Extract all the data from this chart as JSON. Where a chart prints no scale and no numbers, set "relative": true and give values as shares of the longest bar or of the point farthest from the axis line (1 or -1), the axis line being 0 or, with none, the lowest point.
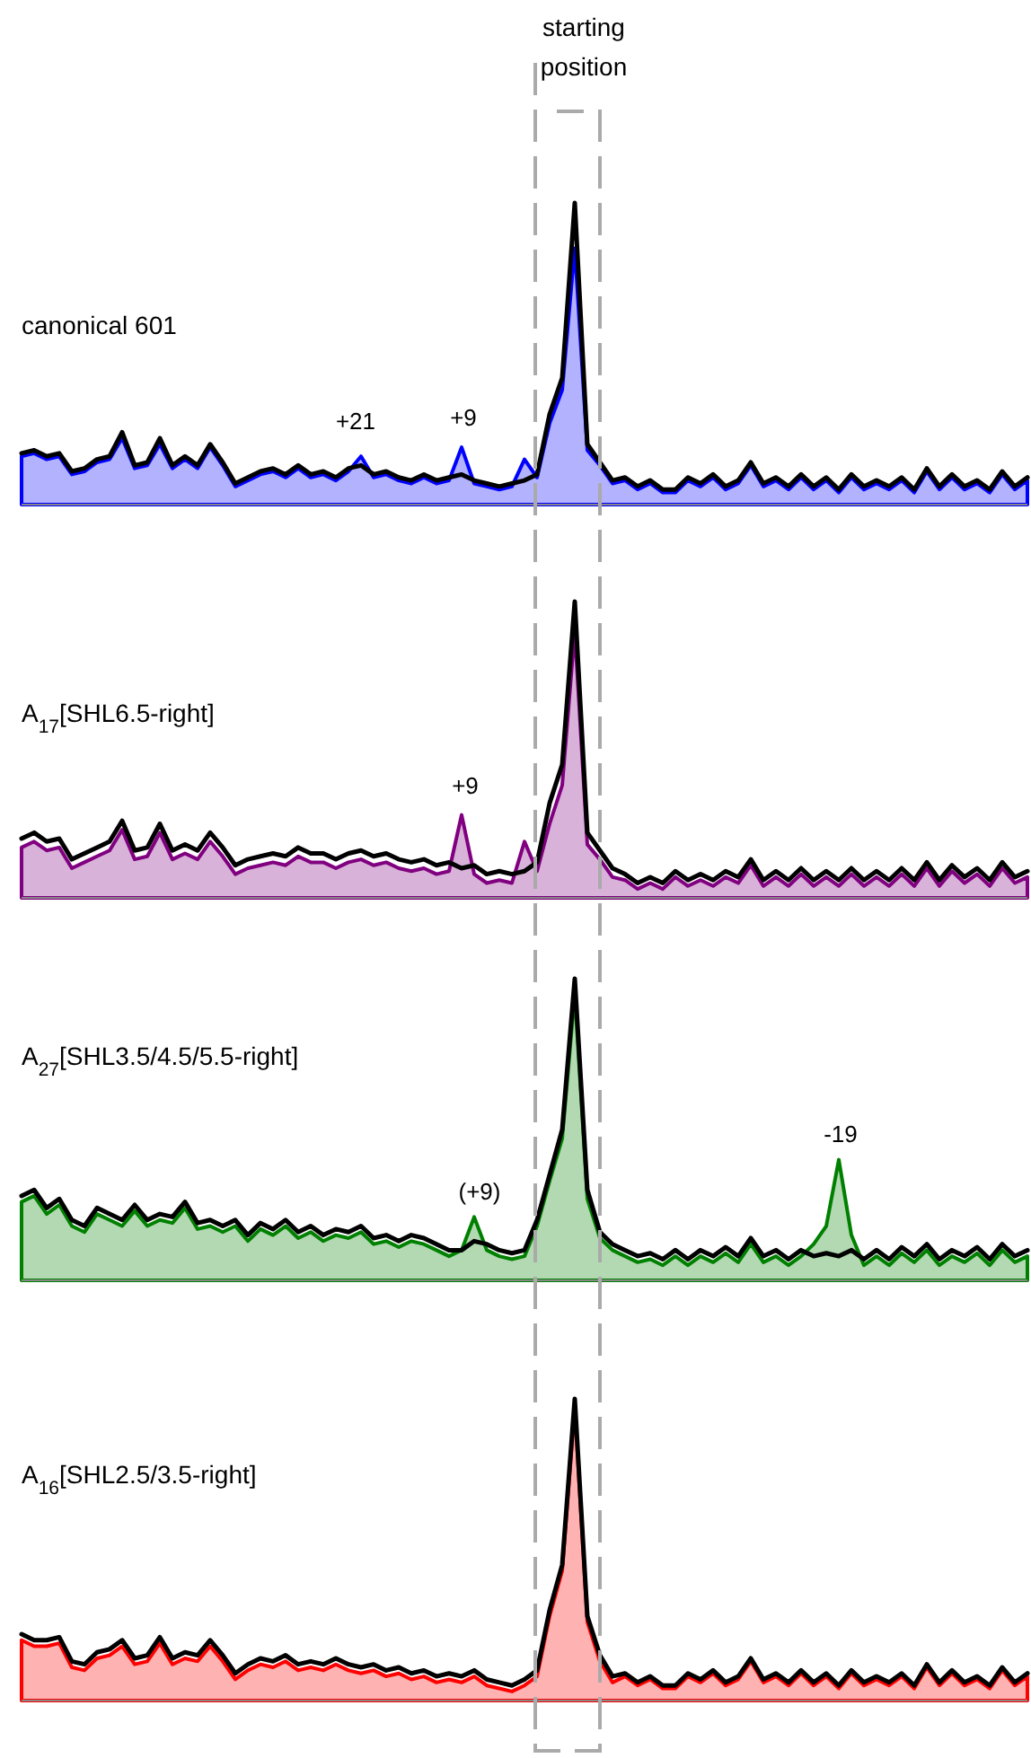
{
  "chart_data": [
    {
      "type": "area",
      "title": "canonical 601",
      "relative": true,
      "annotations": [
        "starting position",
        "+21",
        "+9"
      ],
      "categories": [
        null,
        null,
        null,
        null,
        null,
        null,
        null,
        null,
        null,
        null,
        null,
        null,
        null,
        null,
        null,
        null,
        null,
        null,
        null,
        null,
        null,
        null,
        null,
        null,
        null,
        null,
        null,
        null,
        null,
        null,
        null,
        null,
        null,
        null,
        null,
        null,
        null,
        null,
        null,
        null,
        null,
        null,
        null,
        null,
        null,
        null,
        null,
        null,
        null,
        null,
        null,
        null,
        null,
        null,
        null,
        null,
        null,
        null,
        null,
        null,
        null,
        null,
        null,
        null,
        null,
        null,
        null,
        null,
        null,
        null,
        null,
        null,
        null,
        null,
        null,
        null,
        null,
        null,
        null,
        null,
        null
      ],
      "series": [
        {
          "color": "#0000ff",
          "values": [
            0.16,
            0.17,
            0.15,
            0.16,
            0.1,
            0.11,
            0.14,
            0.15,
            0.22,
            0.12,
            0.13,
            0.2,
            0.12,
            0.15,
            0.12,
            0.19,
            0.13,
            0.06,
            0.08,
            0.1,
            0.11,
            0.09,
            0.12,
            0.09,
            0.1,
            0.08,
            0.11,
            0.16,
            0.09,
            0.1,
            0.08,
            0.07,
            0.09,
            0.07,
            0.08,
            0.19,
            0.07,
            0.06,
            0.05,
            0.06,
            0.15,
            0.09,
            0.27,
            0.38,
            0.85,
            0.18,
            0.13,
            0.07,
            0.08,
            0.05,
            0.07,
            0.04,
            0.04,
            0.08,
            0.06,
            0.09,
            0.05,
            0.07,
            0.13,
            0.06,
            0.08,
            0.05,
            0.09,
            0.05,
            0.08,
            0.04,
            0.09,
            0.05,
            0.07,
            0.05,
            0.08,
            0.04,
            0.11,
            0.05,
            0.09,
            0.05,
            0.07,
            0.04,
            0.1,
            0.05,
            0.08
          ]
        },
        {
          "type": "line",
          "color": "#000000",
          "values": [
            0.17,
            0.18,
            0.16,
            0.17,
            0.11,
            0.12,
            0.15,
            0.16,
            0.24,
            0.13,
            0.14,
            0.22,
            0.13,
            0.16,
            0.13,
            0.2,
            0.14,
            0.07,
            0.09,
            0.11,
            0.12,
            0.1,
            0.13,
            0.1,
            0.11,
            0.09,
            0.12,
            0.13,
            0.1,
            0.11,
            0.09,
            0.08,
            0.1,
            0.08,
            0.09,
            0.1,
            0.08,
            0.07,
            0.06,
            0.07,
            0.08,
            0.1,
            0.3,
            0.42,
            1.0,
            0.2,
            0.14,
            0.08,
            0.09,
            0.06,
            0.08,
            0.05,
            0.05,
            0.09,
            0.07,
            0.1,
            0.06,
            0.08,
            0.14,
            0.07,
            0.09,
            0.06,
            0.1,
            0.06,
            0.09,
            0.05,
            0.1,
            0.06,
            0.08,
            0.06,
            0.09,
            0.05,
            0.12,
            0.06,
            0.1,
            0.06,
            0.08,
            0.05,
            0.11,
            0.06,
            0.09
          ]
        }
      ]
    },
    {
      "type": "area",
      "title": "A$_{17}$[SHL6.5-right]",
      "relative": true,
      "annotations": [
        "+9"
      ],
      "categories": [
        null,
        null,
        null,
        null,
        null,
        null,
        null,
        null,
        null,
        null,
        null,
        null,
        null,
        null,
        null,
        null,
        null,
        null,
        null,
        null,
        null,
        null,
        null,
        null,
        null,
        null,
        null,
        null,
        null,
        null,
        null,
        null,
        null,
        null,
        null,
        null,
        null,
        null,
        null,
        null,
        null,
        null,
        null,
        null,
        null,
        null,
        null,
        null,
        null,
        null,
        null,
        null,
        null,
        null,
        null,
        null,
        null,
        null,
        null,
        null,
        null,
        null,
        null,
        null,
        null,
        null,
        null,
        null,
        null,
        null,
        null,
        null,
        null,
        null,
        null,
        null,
        null,
        null,
        null,
        null,
        null
      ],
      "series": [
        {
          "color": "#800080",
          "values": [
            0.17,
            0.19,
            0.16,
            0.17,
            0.1,
            0.12,
            0.14,
            0.16,
            0.23,
            0.13,
            0.14,
            0.22,
            0.13,
            0.15,
            0.13,
            0.19,
            0.14,
            0.08,
            0.1,
            0.11,
            0.12,
            0.11,
            0.14,
            0.12,
            0.12,
            0.1,
            0.12,
            0.13,
            0.11,
            0.12,
            0.1,
            0.09,
            0.1,
            0.08,
            0.09,
            0.28,
            0.08,
            0.05,
            0.06,
            0.05,
            0.19,
            0.09,
            0.25,
            0.38,
            0.9,
            0.18,
            0.13,
            0.07,
            0.06,
            0.03,
            0.05,
            0.03,
            0.07,
            0.04,
            0.06,
            0.04,
            0.07,
            0.05,
            0.11,
            0.04,
            0.07,
            0.04,
            0.08,
            0.04,
            0.07,
            0.04,
            0.08,
            0.04,
            0.07,
            0.04,
            0.08,
            0.04,
            0.1,
            0.04,
            0.09,
            0.05,
            0.08,
            0.04,
            0.1,
            0.05,
            0.07
          ]
        },
        {
          "type": "line",
          "color": "#000000",
          "values": [
            0.2,
            0.22,
            0.19,
            0.2,
            0.13,
            0.15,
            0.17,
            0.19,
            0.26,
            0.16,
            0.17,
            0.25,
            0.16,
            0.18,
            0.16,
            0.22,
            0.17,
            0.11,
            0.13,
            0.14,
            0.15,
            0.14,
            0.17,
            0.15,
            0.15,
            0.13,
            0.15,
            0.16,
            0.14,
            0.15,
            0.13,
            0.12,
            0.13,
            0.11,
            0.12,
            0.1,
            0.11,
            0.08,
            0.09,
            0.08,
            0.09,
            0.12,
            0.32,
            0.45,
            1.0,
            0.22,
            0.16,
            0.1,
            0.08,
            0.05,
            0.07,
            0.05,
            0.09,
            0.06,
            0.08,
            0.06,
            0.09,
            0.07,
            0.13,
            0.06,
            0.09,
            0.06,
            0.1,
            0.06,
            0.09,
            0.06,
            0.1,
            0.06,
            0.09,
            0.06,
            0.1,
            0.06,
            0.12,
            0.06,
            0.11,
            0.07,
            0.1,
            0.06,
            0.12,
            0.07,
            0.09
          ]
        }
      ]
    },
    {
      "type": "area",
      "title": "A$_{27}$[SHL3.5/4.5/5.5-right]",
      "relative": true,
      "annotations": [
        "(+9)",
        "-19"
      ],
      "categories": [
        null,
        null,
        null,
        null,
        null,
        null,
        null,
        null,
        null,
        null,
        null,
        null,
        null,
        null,
        null,
        null,
        null,
        null,
        null,
        null,
        null,
        null,
        null,
        null,
        null,
        null,
        null,
        null,
        null,
        null,
        null,
        null,
        null,
        null,
        null,
        null,
        null,
        null,
        null,
        null,
        null,
        null,
        null,
        null,
        null,
        null,
        null,
        null,
        null,
        null,
        null,
        null,
        null,
        null,
        null,
        null,
        null,
        null,
        null,
        null,
        null,
        null,
        null,
        null,
        null,
        null,
        null,
        null,
        null,
        null,
        null,
        null,
        null,
        null,
        null,
        null,
        null,
        null,
        null,
        null,
        null
      ],
      "series": [
        {
          "color": "#008000",
          "values": [
            0.26,
            0.28,
            0.22,
            0.25,
            0.18,
            0.16,
            0.22,
            0.2,
            0.18,
            0.23,
            0.18,
            0.2,
            0.19,
            0.24,
            0.17,
            0.18,
            0.16,
            0.18,
            0.13,
            0.17,
            0.15,
            0.18,
            0.14,
            0.16,
            0.13,
            0.15,
            0.14,
            0.16,
            0.12,
            0.13,
            0.11,
            0.13,
            0.12,
            0.1,
            0.08,
            0.1,
            0.21,
            0.1,
            0.08,
            0.07,
            0.08,
            0.18,
            0.33,
            0.47,
            0.95,
            0.27,
            0.14,
            0.1,
            0.08,
            0.06,
            0.07,
            0.05,
            0.08,
            0.05,
            0.08,
            0.06,
            0.09,
            0.06,
            0.12,
            0.06,
            0.08,
            0.05,
            0.08,
            0.12,
            0.18,
            0.4,
            0.15,
            0.05,
            0.08,
            0.05,
            0.09,
            0.06,
            0.1,
            0.05,
            0.08,
            0.06,
            0.09,
            0.05,
            0.1,
            0.06,
            0.08
          ]
        },
        {
          "type": "line",
          "color": "#000000",
          "values": [
            0.28,
            0.3,
            0.24,
            0.27,
            0.2,
            0.18,
            0.24,
            0.22,
            0.2,
            0.25,
            0.2,
            0.22,
            0.21,
            0.26,
            0.19,
            0.2,
            0.18,
            0.2,
            0.15,
            0.19,
            0.17,
            0.2,
            0.16,
            0.18,
            0.15,
            0.17,
            0.16,
            0.18,
            0.14,
            0.15,
            0.13,
            0.15,
            0.14,
            0.12,
            0.1,
            0.1,
            0.13,
            0.12,
            0.1,
            0.09,
            0.1,
            0.2,
            0.35,
            0.5,
            1.0,
            0.3,
            0.16,
            0.12,
            0.1,
            0.08,
            0.09,
            0.07,
            0.1,
            0.07,
            0.1,
            0.08,
            0.11,
            0.08,
            0.14,
            0.08,
            0.1,
            0.07,
            0.1,
            0.08,
            0.09,
            0.08,
            0.1,
            0.07,
            0.1,
            0.07,
            0.11,
            0.08,
            0.12,
            0.07,
            0.1,
            0.08,
            0.11,
            0.07,
            0.12,
            0.08,
            0.1
          ]
        }
      ]
    },
    {
      "type": "area",
      "title": "A$_{16}$[SHL2.5/3.5-right]",
      "relative": true,
      "categories": [
        null,
        null,
        null,
        null,
        null,
        null,
        null,
        null,
        null,
        null,
        null,
        null,
        null,
        null,
        null,
        null,
        null,
        null,
        null,
        null,
        null,
        null,
        null,
        null,
        null,
        null,
        null,
        null,
        null,
        null,
        null,
        null,
        null,
        null,
        null,
        null,
        null,
        null,
        null,
        null,
        null,
        null,
        null,
        null,
        null,
        null,
        null,
        null,
        null,
        null,
        null,
        null,
        null,
        null,
        null,
        null,
        null,
        null,
        null,
        null,
        null,
        null,
        null,
        null,
        null,
        null,
        null,
        null,
        null,
        null,
        null,
        null,
        null,
        null,
        null,
        null,
        null,
        null,
        null,
        null,
        null
      ],
      "series": [
        {
          "color": "#ff0000",
          "values": [
            0.2,
            0.18,
            0.18,
            0.19,
            0.11,
            0.1,
            0.14,
            0.15,
            0.18,
            0.12,
            0.13,
            0.19,
            0.12,
            0.14,
            0.13,
            0.18,
            0.13,
            0.07,
            0.1,
            0.12,
            0.11,
            0.13,
            0.1,
            0.11,
            0.1,
            0.12,
            0.1,
            0.09,
            0.1,
            0.08,
            0.09,
            0.07,
            0.08,
            0.06,
            0.07,
            0.06,
            0.08,
            0.05,
            0.04,
            0.03,
            0.05,
            0.08,
            0.28,
            0.43,
            0.97,
            0.26,
            0.13,
            0.06,
            0.08,
            0.05,
            0.07,
            0.04,
            0.04,
            0.08,
            0.06,
            0.09,
            0.05,
            0.07,
            0.13,
            0.06,
            0.08,
            0.05,
            0.09,
            0.05,
            0.08,
            0.04,
            0.09,
            0.05,
            0.07,
            0.05,
            0.08,
            0.04,
            0.11,
            0.05,
            0.09,
            0.05,
            0.07,
            0.04,
            0.1,
            0.05,
            0.08
          ]
        },
        {
          "type": "line",
          "color": "#000000",
          "values": [
            0.22,
            0.2,
            0.2,
            0.21,
            0.13,
            0.12,
            0.16,
            0.17,
            0.2,
            0.14,
            0.15,
            0.21,
            0.14,
            0.16,
            0.15,
            0.2,
            0.15,
            0.09,
            0.12,
            0.14,
            0.13,
            0.15,
            0.12,
            0.13,
            0.12,
            0.14,
            0.12,
            0.11,
            0.12,
            0.1,
            0.11,
            0.09,
            0.1,
            0.08,
            0.09,
            0.08,
            0.1,
            0.07,
            0.06,
            0.05,
            0.07,
            0.1,
            0.3,
            0.45,
            1.0,
            0.28,
            0.15,
            0.08,
            0.09,
            0.06,
            0.08,
            0.05,
            0.05,
            0.09,
            0.07,
            0.1,
            0.06,
            0.08,
            0.14,
            0.07,
            0.09,
            0.06,
            0.1,
            0.06,
            0.09,
            0.05,
            0.1,
            0.06,
            0.08,
            0.06,
            0.09,
            0.05,
            0.12,
            0.06,
            0.1,
            0.06,
            0.08,
            0.05,
            0.11,
            0.06,
            0.09
          ]
        }
      ]
    }
  ]
}
